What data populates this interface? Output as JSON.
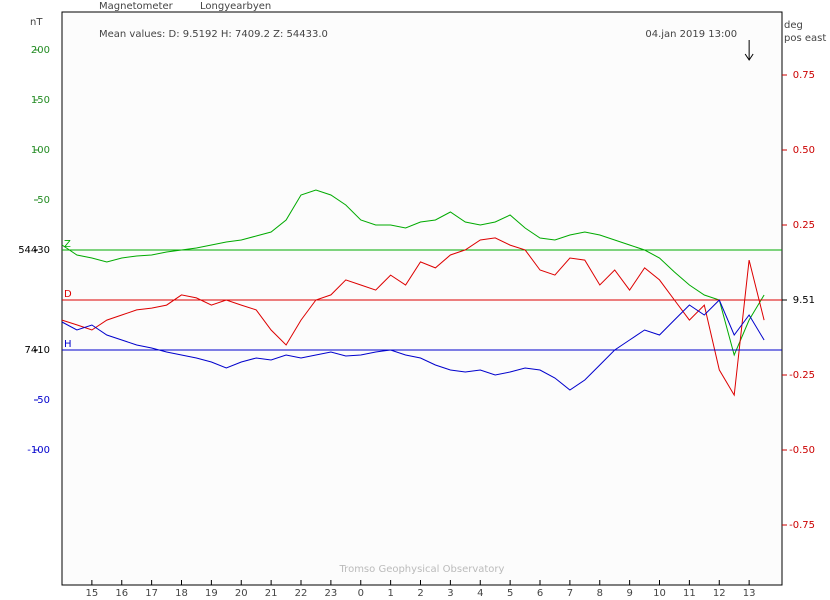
{
  "chart_data": {
    "type": "line",
    "title": "Magnetometer",
    "subtitle": "Longyearbyen",
    "mean_values": "Mean values:  D: 9.5192   H: 7409.2   Z: 54433.0",
    "marker_label": "04.jan 2019 13:00",
    "marker_x": 37,
    "footer": "Tromso Geophysical Observatory",
    "y_label": "nT",
    "y2_label": [
      "deg",
      "pos east"
    ],
    "xlim": [
      14,
      38.1
    ],
    "xticks": [
      15,
      16,
      17,
      18,
      19,
      20,
      21,
      22,
      23,
      {
        "value": 24,
        "label": "0"
      },
      {
        "value": 25,
        "label": "1"
      },
      {
        "value": 26,
        "label": "2"
      },
      {
        "value": 27,
        "label": "3"
      },
      {
        "value": 28,
        "label": "4"
      },
      {
        "value": 29,
        "label": "5"
      },
      {
        "value": 30,
        "label": "6"
      },
      {
        "value": 31,
        "label": "7"
      },
      {
        "value": 32,
        "label": "8"
      },
      {
        "value": 33,
        "label": "9"
      },
      {
        "value": 34,
        "label": "10"
      },
      {
        "value": 35,
        "label": "11"
      },
      {
        "value": 36,
        "label": "12"
      },
      {
        "value": 37,
        "label": "13"
      }
    ],
    "ylim": [
      -335,
      238
    ],
    "yticks": [
      200,
      150,
      100,
      50,
      {
        "value": 0,
        "label": "54430"
      },
      {
        "value": -100,
        "label": "7410"
      },
      {
        "value": -150,
        "label": "-50"
      },
      {
        "value": -200,
        "label": "-100"
      }
    ],
    "ytick_colors": [
      "#228b22",
      "#228b22",
      "#228b22",
      "#228b22",
      "#000000",
      "#000000",
      "#0000cc",
      "#0000cc"
    ],
    "y2lim": [
      8.56,
      10.47
    ],
    "y2ticks": [
      {
        "value": 10.26,
        "label": "0.75"
      },
      {
        "value": 10.01,
        "label": "0.50"
      },
      {
        "value": 9.76,
        "label": "0.25"
      },
      9.51,
      {
        "value": 9.26,
        "label": "-0.25"
      },
      {
        "value": 9.01,
        "label": "-0.50"
      },
      {
        "value": 8.76,
        "label": "-0.75"
      }
    ],
    "y2tick_color": "#cc0000",
    "x": [
      14,
      14.5,
      15,
      15.5,
      16,
      16.5,
      17,
      17.5,
      18,
      18.5,
      19,
      19.5,
      20,
      20.5,
      21,
      21.5,
      22,
      22.5,
      23,
      23.5,
      24,
      24.5,
      25,
      25.5,
      26,
      26.5,
      27,
      27.5,
      28,
      28.5,
      29,
      29.5,
      30,
      30.5,
      31,
      31.5,
      32,
      32.5,
      33,
      33.5,
      34,
      34.5,
      35,
      35.5,
      36,
      36.5,
      37,
      37.5
    ],
    "series": [
      {
        "name": "Z",
        "color": "#00aa00",
        "baseline": 0,
        "values": [
          5,
          -5,
          -8,
          -12,
          -8,
          -6,
          -5,
          -2,
          0,
          2,
          5,
          8,
          10,
          14,
          18,
          30,
          55,
          60,
          55,
          45,
          30,
          25,
          25,
          22,
          28,
          30,
          38,
          28,
          25,
          28,
          35,
          22,
          12,
          10,
          15,
          18,
          15,
          10,
          5,
          0,
          -8,
          -22,
          -35,
          -45,
          -50,
          -105,
          -70,
          -45
        ]
      },
      {
        "name": "D",
        "color": "#dd0000",
        "baseline": 9.51,
        "axis": "y2",
        "values": [
          9.443,
          9.427,
          9.41,
          9.443,
          9.46,
          9.477,
          9.483,
          9.493,
          9.527,
          9.517,
          9.493,
          9.51,
          9.493,
          9.477,
          9.41,
          9.36,
          9.443,
          9.51,
          9.527,
          9.577,
          9.56,
          9.543,
          9.593,
          9.56,
          9.637,
          9.617,
          9.66,
          9.677,
          9.71,
          9.717,
          9.693,
          9.677,
          9.61,
          9.593,
          9.65,
          9.643,
          9.56,
          9.61,
          9.543,
          9.617,
          9.577,
          9.51,
          9.443,
          9.493,
          9.277,
          9.193,
          9.643,
          9.443
        ]
      },
      {
        "name": "H",
        "color": "#0000cc",
        "baseline": -100,
        "values": [
          -72,
          -80,
          -75,
          -85,
          -90,
          -95,
          -98,
          -102,
          -105,
          -108,
          -112,
          -118,
          -112,
          -108,
          -110,
          -105,
          -108,
          -105,
          -102,
          -106,
          -105,
          -102,
          -100,
          -105,
          -108,
          -115,
          -120,
          -122,
          -120,
          -125,
          -122,
          -118,
          -120,
          -128,
          -140,
          -130,
          -115,
          -100,
          -90,
          -80,
          -85,
          -70,
          -55,
          -65,
          -50,
          -85,
          -65,
          -90
        ]
      }
    ]
  }
}
